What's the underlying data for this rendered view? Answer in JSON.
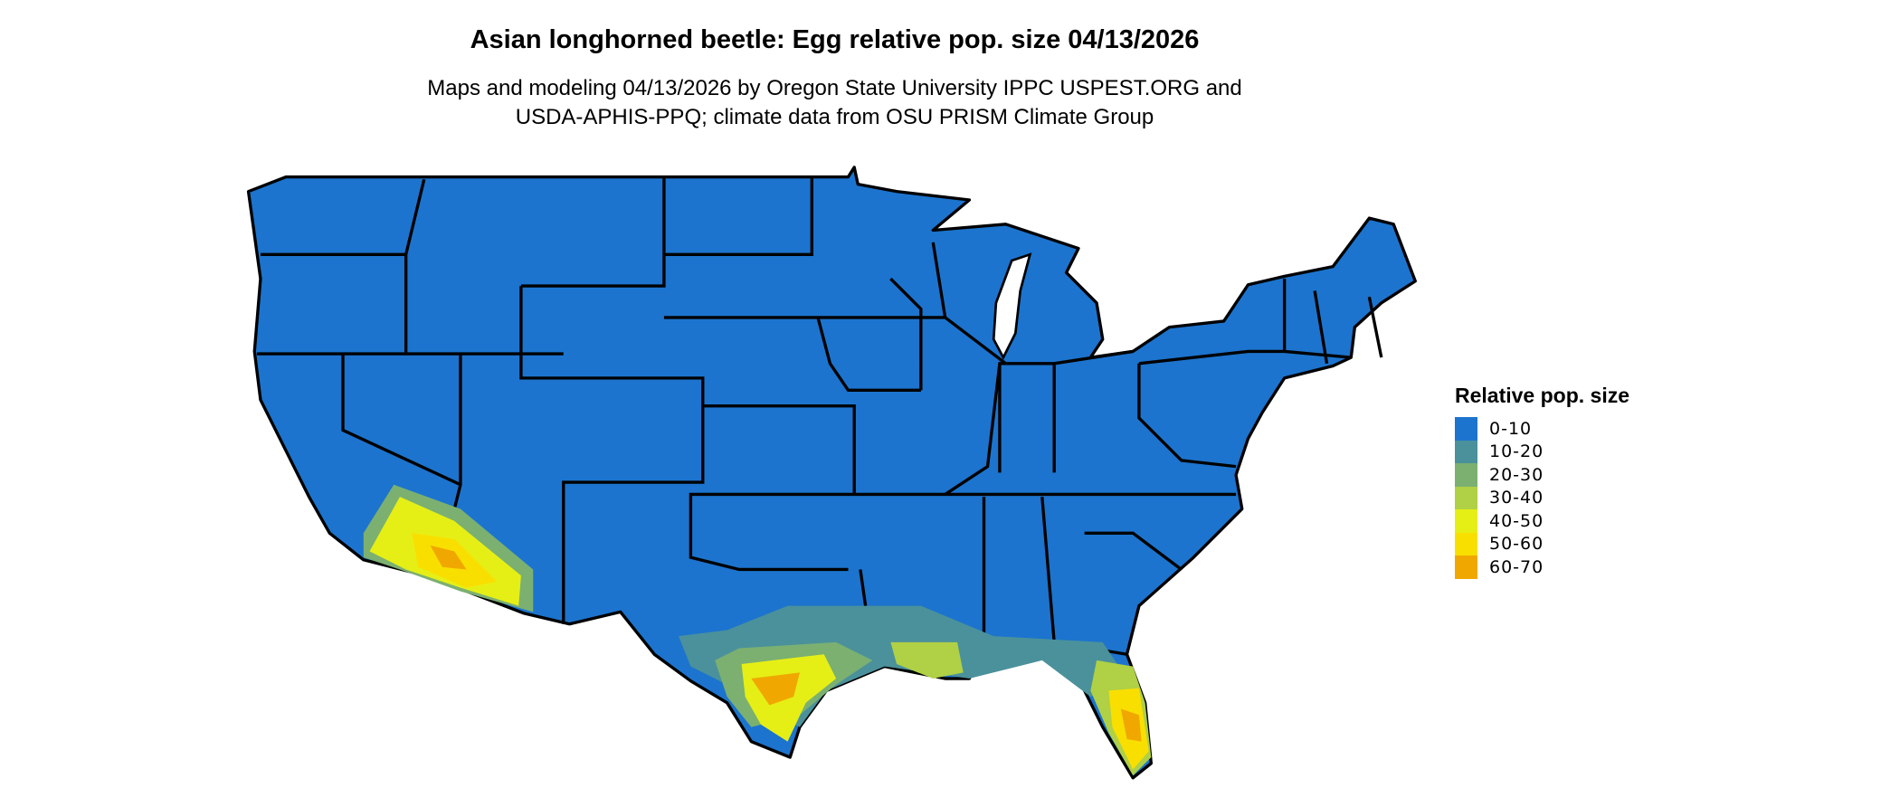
{
  "title": "Asian longhorned beetle: Egg relative pop. size 04/13/2026",
  "subtitle_line1": "Maps and modeling 04/13/2026 by Oregon State University IPPC USPEST.ORG and",
  "subtitle_line2": "USDA-APHIS-PPQ; climate data from OSU PRISM Climate Group",
  "legend": {
    "title": "Relative pop. size",
    "items": [
      {
        "label": "0-10",
        "color": "#1C74CE"
      },
      {
        "label": "10-20",
        "color": "#4A919B"
      },
      {
        "label": "20-30",
        "color": "#7BB071"
      },
      {
        "label": "30-40",
        "color": "#B0D045"
      },
      {
        "label": "40-50",
        "color": "#E6EF15"
      },
      {
        "label": "50-60",
        "color": "#F9DF00"
      },
      {
        "label": "60-70",
        "color": "#F0A800"
      }
    ]
  }
}
